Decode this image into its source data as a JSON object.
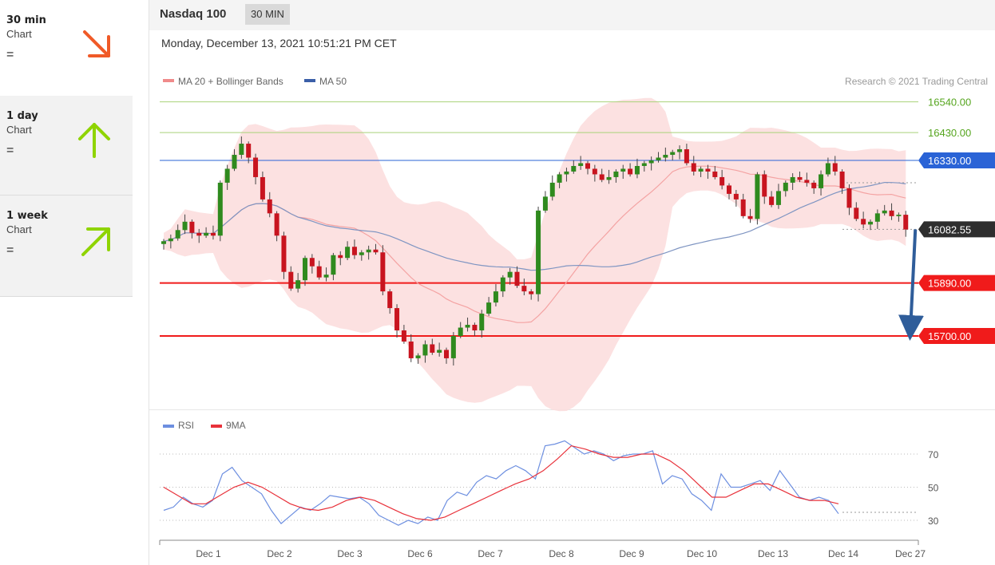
{
  "sidebar": {
    "items": [
      {
        "name": "30 min",
        "sub": "Chart",
        "eq": "=",
        "direction": "down-right",
        "color": "#f05a28"
      },
      {
        "name": "1 day",
        "sub": "Chart",
        "eq": "=",
        "direction": "up",
        "color": "#8fd400"
      },
      {
        "name": "1 week",
        "sub": "Chart",
        "eq": "=",
        "direction": "up-right",
        "color": "#8fd400"
      }
    ]
  },
  "header": {
    "title": "Nasdaq 100",
    "timeframe": "30 MIN",
    "datetime": "Monday, December 13, 2021 10:51:21 PM CET"
  },
  "chart_data": [
    {
      "type": "candlestick",
      "instrument": "Nasdaq 100",
      "legend": [
        {
          "label": "MA 20 + Bollinger Bands",
          "color": "#f08a8a"
        },
        {
          "label": "MA 50",
          "color": "#3b5fa8"
        }
      ],
      "credit": "Research © 2021 Trading Central",
      "x_labels": [
        "Dec 1",
        "Dec 2",
        "Dec 3",
        "Dec 6",
        "Dec 7",
        "Dec 8",
        "Dec 9",
        "Dec 10",
        "Dec 13",
        "Dec 14",
        "Dec 27"
      ],
      "ylim": [
        15570,
        16660
      ],
      "closes": [
        16040,
        16050,
        16080,
        16110,
        16070,
        16060,
        16070,
        16060,
        16250,
        16300,
        16350,
        16390,
        16340,
        16270,
        16190,
        16140,
        16060,
        15930,
        15870,
        15900,
        15980,
        15950,
        15910,
        15920,
        15990,
        15980,
        16020,
        15990,
        16000,
        16010,
        16000,
        15860,
        15800,
        15720,
        15680,
        15620,
        15630,
        15670,
        15640,
        15650,
        15620,
        15700,
        15730,
        15740,
        15720,
        15780,
        15820,
        15860,
        15910,
        15930,
        15880,
        15860,
        15850,
        16150,
        16200,
        16250,
        16280,
        16290,
        16310,
        16320,
        16300,
        16280,
        16260,
        16270,
        16290,
        16300,
        16280,
        16310,
        16320,
        16330,
        16340,
        16350,
        16360,
        16370,
        16320,
        16290,
        16300,
        16290,
        16270,
        16240,
        16210,
        16190,
        16130,
        16120,
        16280,
        16200,
        16170,
        16220,
        16250,
        16270,
        16260,
        16250,
        16230,
        16280,
        16320,
        16290,
        16230,
        16160,
        16120,
        16100,
        16110,
        16140,
        16150,
        16130,
        16135,
        16082
      ],
      "levels": [
        {
          "value": 16540.0,
          "label": "16540.00",
          "kind": "resistance"
        },
        {
          "value": 16430.0,
          "label": "16430.00",
          "kind": "resistance"
        },
        {
          "value": 16330.0,
          "label": "16330.00",
          "kind": "pivot"
        },
        {
          "value": 16082.55,
          "label": "16082.55",
          "kind": "last"
        },
        {
          "value": 15890.0,
          "label": "15890.00",
          "kind": "support"
        },
        {
          "value": 15700.0,
          "label": "15700.00",
          "kind": "support"
        }
      ],
      "forecast": {
        "from": 16082.55,
        "to": 15700.0,
        "direction": "down"
      }
    },
    {
      "type": "line",
      "legend": [
        {
          "label": "RSI",
          "color": "#6d8fe0"
        },
        {
          "label": "9MA",
          "color": "#e8313a"
        }
      ],
      "y_ticks": [
        "70",
        "50",
        "30"
      ],
      "ylim": [
        20,
        80
      ],
      "rsi": [
        36,
        38,
        44,
        40,
        38,
        42,
        58,
        62,
        54,
        50,
        46,
        36,
        28,
        33,
        38,
        36,
        40,
        45,
        44,
        43,
        44,
        40,
        33,
        30,
        27,
        30,
        28,
        32,
        30,
        42,
        47,
        45,
        53,
        57,
        55,
        60,
        63,
        60,
        55,
        75,
        76,
        78,
        74,
        70,
        72,
        70,
        66,
        69,
        70,
        70,
        72,
        52,
        57,
        55,
        46,
        42,
        36,
        58,
        50,
        50,
        52,
        54,
        48,
        60,
        52,
        44,
        42,
        44,
        42,
        34
      ],
      "ma9": [
        50,
        45,
        40,
        40,
        45,
        50,
        53,
        50,
        45,
        40,
        37,
        36,
        38,
        42,
        44,
        42,
        38,
        34,
        31,
        30,
        32,
        36,
        40,
        44,
        48,
        52,
        55,
        60,
        67,
        75,
        73,
        70,
        68,
        68,
        70,
        70,
        66,
        60,
        52,
        44,
        44,
        48,
        52,
        52,
        48,
        44,
        42,
        42,
        40
      ]
    }
  ]
}
